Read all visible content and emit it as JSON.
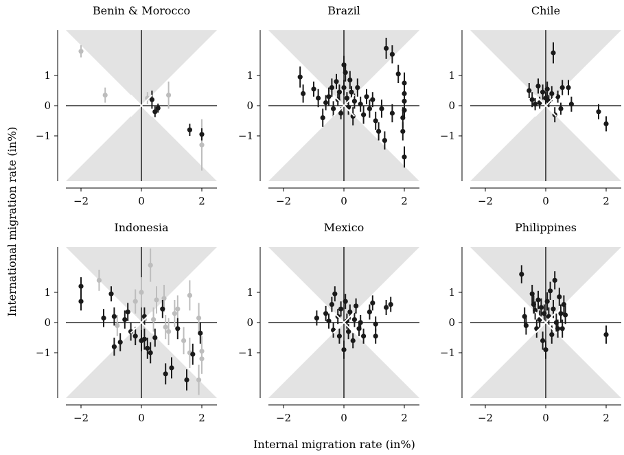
{
  "figure": {
    "ylabel": "International migration rate (in%)",
    "xlabel": "Internal migration rate (in%)"
  },
  "chart_data": {
    "type": "scatter",
    "layout": "2x3 facet grid",
    "xlim": [
      -2.5,
      2.5
    ],
    "ylim": [
      -2.5,
      2.5
    ],
    "xticks": [
      -2,
      0,
      2
    ],
    "yticks": [
      1,
      0,
      -1
    ],
    "error_bars": true,
    "shaded_region": "cones |y| > |x| above and below origin",
    "colors": {
      "primary": "#1a1a1a",
      "secondary": "#bdbdbd",
      "shade": "#e3e3e3",
      "axes": "#000000"
    },
    "panels": [
      {
        "title": "Benin & Morocco",
        "series": [
          {
            "color": "primary",
            "points": [
              [
                0.35,
                0.2,
                0.3
              ],
              [
                0.45,
                -0.2,
                0.18
              ],
              [
                0.55,
                -0.08,
                0.15
              ],
              [
                1.6,
                -0.8,
                0.2
              ],
              [
                2.0,
                -0.95,
                0.2
              ]
            ]
          },
          {
            "color": "secondary",
            "points": [
              [
                -2.0,
                1.8,
                0.2
              ],
              [
                -1.2,
                0.35,
                0.25
              ],
              [
                0.2,
                0.25,
                0.2
              ],
              [
                0.9,
                0.35,
                0.45
              ],
              [
                2.0,
                -1.3,
                0.85
              ]
            ]
          }
        ]
      },
      {
        "title": "Brazil",
        "series": [
          {
            "color": "primary",
            "points": [
              [
                -1.45,
                0.95,
                0.35
              ],
              [
                -1.35,
                0.4,
                0.3
              ],
              [
                -1.0,
                0.55,
                0.25
              ],
              [
                -0.85,
                0.25,
                0.3
              ],
              [
                -0.7,
                -0.4,
                0.3
              ],
              [
                -0.6,
                0.1,
                0.25
              ],
              [
                -0.5,
                0.3,
                0.3
              ],
              [
                -0.4,
                0.6,
                0.3
              ],
              [
                -0.35,
                -0.1,
                0.25
              ],
              [
                -0.25,
                0.8,
                0.25
              ],
              [
                -0.2,
                0.2,
                0.2
              ],
              [
                -0.15,
                0.45,
                0.25
              ],
              [
                -0.1,
                -0.25,
                0.2
              ],
              [
                0.0,
                1.35,
                0.3
              ],
              [
                0.0,
                0.6,
                0.25
              ],
              [
                0.05,
                1.1,
                0.3
              ],
              [
                0.1,
                0.25,
                0.2
              ],
              [
                0.15,
                -0.05,
                0.25
              ],
              [
                0.2,
                0.85,
                0.3
              ],
              [
                0.25,
                0.45,
                0.2
              ],
              [
                0.3,
                -0.35,
                0.3
              ],
              [
                0.35,
                0.15,
                0.25
              ],
              [
                0.45,
                0.6,
                0.3
              ],
              [
                0.55,
                0.05,
                0.25
              ],
              [
                0.65,
                -0.3,
                0.3
              ],
              [
                0.75,
                0.3,
                0.25
              ],
              [
                0.85,
                -0.1,
                0.3
              ],
              [
                0.95,
                0.2,
                0.25
              ],
              [
                1.05,
                -0.5,
                0.3
              ],
              [
                1.15,
                -0.85,
                0.3
              ],
              [
                1.25,
                -0.1,
                0.3
              ],
              [
                1.35,
                -1.15,
                0.3
              ],
              [
                1.4,
                1.9,
                0.35
              ],
              [
                1.6,
                1.7,
                0.3
              ],
              [
                1.6,
                -0.25,
                0.3
              ],
              [
                1.8,
                1.05,
                0.3
              ],
              [
                1.95,
                -0.4,
                0.35
              ],
              [
                2.0,
                0.75,
                0.35
              ],
              [
                2.0,
                0.4,
                0.3
              ],
              [
                2.0,
                0.15,
                0.3
              ],
              [
                2.0,
                -0.15,
                0.3
              ],
              [
                1.95,
                -0.85,
                0.3
              ],
              [
                2.0,
                -1.7,
                0.35
              ]
            ]
          }
        ]
      },
      {
        "title": "Chile",
        "series": [
          {
            "color": "primary",
            "points": [
              [
                -0.55,
                0.5,
                0.25
              ],
              [
                -0.45,
                0.2,
                0.25
              ],
              [
                -0.35,
                0.05,
                0.2
              ],
              [
                -0.25,
                0.65,
                0.25
              ],
              [
                -0.2,
                0.1,
                0.2
              ],
              [
                -0.1,
                0.45,
                0.25
              ],
              [
                0.0,
                0.25,
                0.2
              ],
              [
                0.05,
                0.55,
                0.25
              ],
              [
                0.1,
                0.15,
                0.2
              ],
              [
                0.2,
                0.4,
                0.25
              ],
              [
                0.25,
                1.75,
                0.35
              ],
              [
                0.3,
                -0.3,
                0.25
              ],
              [
                0.4,
                0.3,
                0.2
              ],
              [
                0.55,
                0.6,
                0.25
              ],
              [
                0.75,
                0.6,
                0.25
              ],
              [
                0.85,
                0.05,
                0.25
              ],
              [
                0.5,
                -0.1,
                0.2
              ],
              [
                1.75,
                -0.2,
                0.25
              ],
              [
                2.0,
                -0.6,
                0.25
              ]
            ]
          }
        ]
      },
      {
        "title": "Indonesia",
        "series": [
          {
            "color": "primary",
            "points": [
              [
                -2.0,
                1.2,
                0.3
              ],
              [
                -2.0,
                0.7,
                0.3
              ],
              [
                -1.25,
                0.15,
                0.3
              ],
              [
                -1.0,
                0.95,
                0.25
              ],
              [
                -0.9,
                0.2,
                0.3
              ],
              [
                -0.9,
                -0.8,
                0.3
              ],
              [
                -0.7,
                -0.65,
                0.3
              ],
              [
                -0.55,
                0.1,
                0.3
              ],
              [
                -0.45,
                0.35,
                0.3
              ],
              [
                -0.35,
                -0.3,
                0.3
              ],
              [
                -0.2,
                -0.45,
                0.3
              ],
              [
                0.0,
                -0.6,
                0.35
              ],
              [
                0.1,
                -0.55,
                0.35
              ],
              [
                0.2,
                -0.85,
                0.35
              ],
              [
                0.3,
                -1.0,
                0.35
              ],
              [
                0.45,
                -0.5,
                0.3
              ],
              [
                0.7,
                0.45,
                0.3
              ],
              [
                0.8,
                -1.7,
                0.35
              ],
              [
                1.0,
                -1.5,
                0.35
              ],
              [
                1.2,
                -0.2,
                0.35
              ],
              [
                1.5,
                -1.9,
                0.35
              ],
              [
                1.7,
                -1.05,
                0.35
              ],
              [
                1.95,
                -0.35,
                0.35
              ],
              [
                0.1,
                0.2,
                0.3
              ]
            ]
          },
          {
            "color": "secondary",
            "points": [
              [
                -1.4,
                1.4,
                0.35
              ],
              [
                -0.8,
                -0.1,
                0.35
              ],
              [
                -0.2,
                0.7,
                0.4
              ],
              [
                0.0,
                1.0,
                0.5
              ],
              [
                0.1,
                0.1,
                0.4
              ],
              [
                0.3,
                1.9,
                0.55
              ],
              [
                0.4,
                0.1,
                0.4
              ],
              [
                0.5,
                0.75,
                0.45
              ],
              [
                0.75,
                0.8,
                0.45
              ],
              [
                0.9,
                -0.3,
                0.45
              ],
              [
                1.1,
                0.3,
                0.45
              ],
              [
                1.2,
                0.45,
                0.45
              ],
              [
                1.4,
                -0.6,
                0.45
              ],
              [
                1.6,
                0.9,
                0.5
              ],
              [
                1.6,
                -1.0,
                0.5
              ],
              [
                1.9,
                0.15,
                0.5
              ],
              [
                2.0,
                -0.95,
                0.5
              ],
              [
                2.0,
                -1.2,
                0.5
              ],
              [
                1.9,
                -1.9,
                0.5
              ],
              [
                0.8,
                -0.15,
                0.4
              ]
            ]
          }
        ]
      },
      {
        "title": "Mexico",
        "series": [
          {
            "color": "primary",
            "points": [
              [
                -0.9,
                0.15,
                0.25
              ],
              [
                -0.6,
                0.3,
                0.25
              ],
              [
                -0.4,
                0.6,
                0.25
              ],
              [
                -0.35,
                -0.25,
                0.25
              ],
              [
                -0.3,
                0.95,
                0.25
              ],
              [
                -0.2,
                0.2,
                0.25
              ],
              [
                -0.15,
                -0.45,
                0.25
              ],
              [
                -0.1,
                0.45,
                0.25
              ],
              [
                0.0,
                -0.9,
                0.3
              ],
              [
                0.05,
                0.7,
                0.25
              ],
              [
                0.1,
                0.05,
                0.25
              ],
              [
                0.15,
                -0.3,
                0.25
              ],
              [
                0.2,
                0.35,
                0.25
              ],
              [
                0.3,
                -0.6,
                0.25
              ],
              [
                0.35,
                0.1,
                0.25
              ],
              [
                0.4,
                0.55,
                0.25
              ],
              [
                0.5,
                -0.2,
                0.25
              ],
              [
                0.55,
                0.0,
                0.25
              ],
              [
                0.65,
                -0.45,
                0.25
              ],
              [
                0.85,
                0.35,
                0.25
              ],
              [
                0.95,
                0.65,
                0.25
              ],
              [
                1.05,
                -0.45,
                0.25
              ],
              [
                1.05,
                -0.05,
                0.25
              ],
              [
                1.4,
                0.5,
                0.25
              ],
              [
                1.55,
                0.6,
                0.25
              ],
              [
                -0.5,
                0.05,
                0.25
              ]
            ]
          }
        ]
      },
      {
        "title": "Philippines",
        "series": [
          {
            "color": "primary",
            "points": [
              [
                -0.8,
                1.6,
                0.3
              ],
              [
                -0.7,
                0.2,
                0.3
              ],
              [
                -0.65,
                -0.1,
                0.3
              ],
              [
                -0.45,
                0.95,
                0.3
              ],
              [
                -0.4,
                0.6,
                0.3
              ],
              [
                -0.35,
                0.4,
                0.3
              ],
              [
                -0.3,
                -0.2,
                0.3
              ],
              [
                -0.25,
                0.75,
                0.3
              ],
              [
                -0.2,
                0.1,
                0.3
              ],
              [
                -0.15,
                0.5,
                0.3
              ],
              [
                -0.1,
                -0.6,
                0.3
              ],
              [
                -0.05,
                0.3,
                0.3
              ],
              [
                0.0,
                -0.9,
                0.3
              ],
              [
                0.05,
                0.7,
                0.3
              ],
              [
                0.1,
                0.2,
                0.3
              ],
              [
                0.15,
                1.05,
                0.3
              ],
              [
                0.2,
                -0.4,
                0.3
              ],
              [
                0.25,
                0.45,
                0.3
              ],
              [
                0.3,
                1.4,
                0.3
              ],
              [
                0.35,
                0.0,
                0.3
              ],
              [
                0.4,
                -0.2,
                0.3
              ],
              [
                0.45,
                0.85,
                0.3
              ],
              [
                0.5,
                0.3,
                0.3
              ],
              [
                0.55,
                -0.2,
                0.3
              ],
              [
                0.6,
                0.6,
                0.3
              ],
              [
                0.65,
                0.25,
                0.3
              ],
              [
                2.0,
                -0.4,
                0.3
              ]
            ]
          }
        ]
      }
    ]
  }
}
